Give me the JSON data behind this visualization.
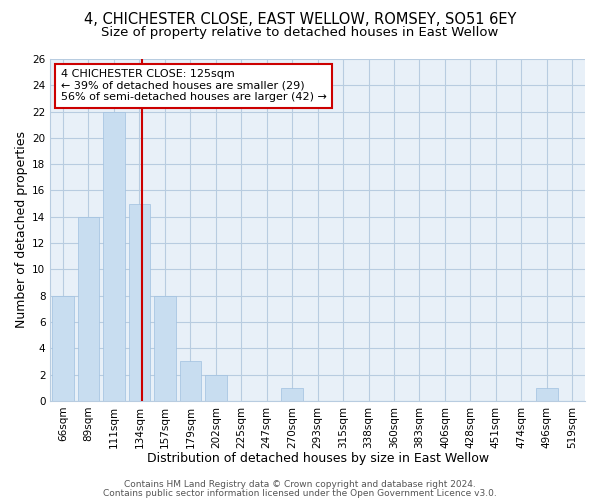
{
  "title": "4, CHICHESTER CLOSE, EAST WELLOW, ROMSEY, SO51 6EY",
  "subtitle": "Size of property relative to detached houses in East Wellow",
  "xlabel": "Distribution of detached houses by size in East Wellow",
  "ylabel": "Number of detached properties",
  "bar_labels": [
    "66sqm",
    "89sqm",
    "111sqm",
    "134sqm",
    "157sqm",
    "179sqm",
    "202sqm",
    "225sqm",
    "247sqm",
    "270sqm",
    "293sqm",
    "315sqm",
    "338sqm",
    "360sqm",
    "383sqm",
    "406sqm",
    "428sqm",
    "451sqm",
    "474sqm",
    "496sqm",
    "519sqm"
  ],
  "bar_values": [
    8,
    14,
    22,
    15,
    8,
    3,
    2,
    0,
    0,
    1,
    0,
    0,
    0,
    0,
    0,
    0,
    0,
    0,
    0,
    1,
    0
  ],
  "bar_color": "#c8ddf0",
  "bar_edge_color": "#a0c0e0",
  "vline_pos": 3.1,
  "vline_color": "#cc0000",
  "annotation_title": "4 CHICHESTER CLOSE: 125sqm",
  "annotation_line1": "← 39% of detached houses are smaller (29)",
  "annotation_line2": "56% of semi-detached houses are larger (42) →",
  "annotation_box_color": "#ffffff",
  "annotation_box_edge": "#cc0000",
  "ylim": [
    0,
    26
  ],
  "yticks": [
    0,
    2,
    4,
    6,
    8,
    10,
    12,
    14,
    16,
    18,
    20,
    22,
    24,
    26
  ],
  "footer_line1": "Contains HM Land Registry data © Crown copyright and database right 2024.",
  "footer_line2": "Contains public sector information licensed under the Open Government Licence v3.0.",
  "bg_color": "#ffffff",
  "axes_bg_color": "#e8f0f8",
  "grid_color": "#b8cce0",
  "title_fontsize": 10.5,
  "subtitle_fontsize": 9.5,
  "axis_label_fontsize": 9,
  "tick_fontsize": 7.5,
  "annotation_fontsize": 8,
  "footer_fontsize": 6.5
}
